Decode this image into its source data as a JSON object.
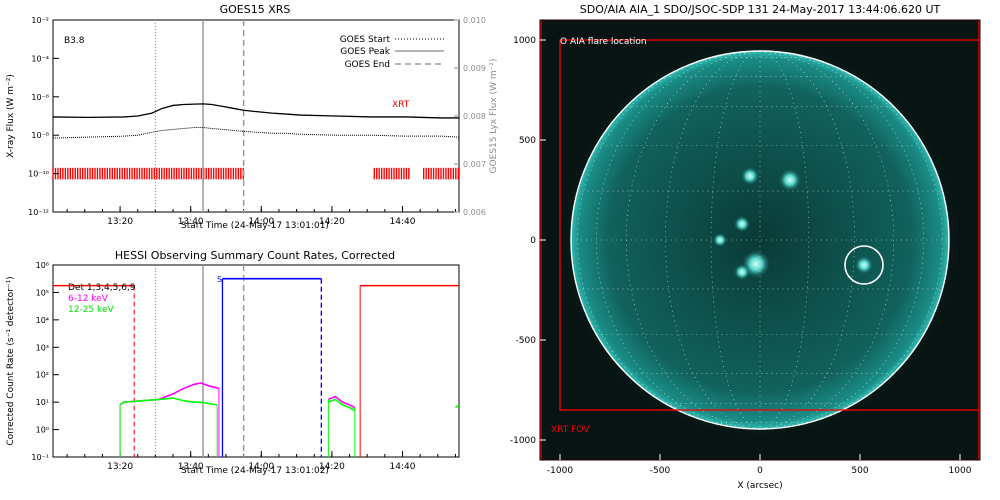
{
  "colors": {
    "background": "#ffffff",
    "axis": "#000000",
    "goes_long": "#000000",
    "goes_short": "#000000",
    "xrt": "#ff0000",
    "ch_6_12": "#ff00ff",
    "ch_12_25": "#00ff00",
    "saa": "#0000ff",
    "right_axis": "#8c8c8c",
    "sun_bg": "#071413",
    "sun_disk": "#0f5552",
    "limb": "#ffffff",
    "grid": "#ffffff",
    "fov": "#ff0000"
  },
  "chart_data": [
    {
      "type": "line",
      "title": "GOES15 XRS",
      "xlabel": "Start Time (24-May-17 13:01:01)",
      "ylabel": "X-ray Flux (W m⁻²)",
      "ylabel_right": "GOES15 Lyx Flux (W m⁻²)",
      "x_ticks": [
        "13:20",
        "13:40",
        "14:00",
        "14:20",
        "14:40"
      ],
      "y_ticks": [
        "10⁻²",
        "10⁻⁴",
        "10⁻⁶",
        "10⁻⁸",
        "10⁻¹⁰",
        "10⁻¹²"
      ],
      "y_ticks_right": [
        "0.010",
        "0.009",
        "0.008",
        "0.007",
        "0.006"
      ],
      "xlim_min": [
        0,
        115
      ],
      "ylim_log10": [
        -12,
        -2
      ],
      "yscale": "log",
      "annotation": "B3.8",
      "xrt_label": "XRT",
      "legend": [
        "GOES Start",
        "GOES Peak",
        "GOES End"
      ],
      "legend_position": "top-right",
      "markers_min": {
        "start": 29,
        "peak": 42.5,
        "end": 54
      },
      "series": [
        {
          "x_min": [
            0,
            10,
            20,
            24,
            28,
            31,
            34,
            37,
            40,
            42.5,
            45,
            48,
            51,
            54,
            58,
            62,
            66,
            70,
            80,
            90,
            100,
            110,
            115
          ],
          "log10_flux": [
            -7.05,
            -7.07,
            -7.05,
            -7.0,
            -6.85,
            -6.6,
            -6.45,
            -6.4,
            -6.38,
            -6.37,
            -6.4,
            -6.5,
            -6.6,
            -6.7,
            -6.78,
            -6.85,
            -6.9,
            -6.95,
            -7.0,
            -7.05,
            -7.05,
            -7.1,
            -7.1
          ]
        },
        {
          "x_min": [
            0,
            10,
            20,
            24,
            28,
            31,
            34,
            37,
            40,
            42.5,
            45,
            48,
            51,
            54,
            58,
            62,
            66,
            70,
            80,
            90,
            100,
            110,
            115
          ],
          "log10_flux": [
            -8.15,
            -8.1,
            -8.05,
            -8.0,
            -7.85,
            -7.75,
            -7.7,
            -7.65,
            -7.6,
            -7.6,
            -7.65,
            -7.7,
            -7.75,
            -7.8,
            -7.85,
            -7.9,
            -7.9,
            -7.95,
            -8.0,
            -8.0,
            -8.05,
            -8.05,
            -8.1
          ]
        }
      ],
      "xrt_intervals_min": [
        [
          0,
          54
        ],
        [
          91,
          101
        ],
        [
          105,
          115
        ]
      ]
    },
    {
      "type": "line",
      "title": "HESSI Observing Summary Count Rates, Corrected",
      "xlabel": "Start Time (24-May-17 13:01:02)",
      "ylabel": "Corrected Count Rate (s⁻¹ detector⁻¹)",
      "x_ticks": [
        "13:20",
        "13:40",
        "14:00",
        "14:20",
        "14:40"
      ],
      "y_ticks": [
        "10⁶",
        "10⁵",
        "10⁴",
        "10³",
        "10²",
        "10¹",
        "10⁰",
        "10⁻¹"
      ],
      "xlim_min": [
        0,
        115
      ],
      "ylim_log10": [
        -1,
        6
      ],
      "yscale": "log",
      "legend": [
        "Det 1,3,4,5,6,9",
        "6-12 keV",
        "12-25 keV"
      ],
      "legend_position": "top-left",
      "saa_label": "S",
      "markers_min": {
        "start": 29,
        "peak": 42.5,
        "end": 54
      },
      "series": [
        {
          "name": "6-12 keV",
          "x_min": [
            19,
            20,
            25,
            30,
            34,
            37,
            40,
            42,
            44,
            47
          ],
          "log10_rate": [
            0.9,
            1.0,
            1.05,
            1.1,
            1.3,
            1.5,
            1.65,
            1.7,
            1.6,
            1.5
          ]
        },
        {
          "name": "12-25 keV",
          "x_min": [
            19,
            20,
            25,
            30,
            34,
            37,
            40,
            42,
            44,
            46.5
          ],
          "log10_rate": [
            0.9,
            1.0,
            1.05,
            1.1,
            1.15,
            1.05,
            1.0,
            1.0,
            0.95,
            0.9
          ]
        }
      ],
      "late_series_min": {
        "x": [
          78,
          80,
          82,
          84,
          85.5
        ],
        "log10": [
          1.1,
          1.2,
          1.0,
          0.9,
          0.8
        ]
      },
      "saa_interval_min": [
        48,
        76
      ],
      "saa_level_log10": 5.5,
      "night_intervals_min": [
        [
          0,
          23
        ],
        [
          87,
          115
        ]
      ],
      "night_level_log10": 5.25
    },
    {
      "type": "heatmap",
      "title": "SDO/AIA AIA_1 SDO/JSOC-SDP 131 24-May-2017 13:44:06.620 UT",
      "xlabel": "X (arcsec)",
      "ylabel": "",
      "x_ticks": [
        -1000,
        -500,
        0,
        500,
        1000
      ],
      "y_ticks": [
        1000,
        500,
        0,
        -500,
        -1000
      ],
      "xlim": [
        -1100,
        1100
      ],
      "ylim": [
        -1100,
        1100
      ],
      "solar_radius_arcsec": 945,
      "legend": [
        "O AIA flare location"
      ],
      "flare_location": [
        520,
        -125
      ],
      "flare_circle_radius_arcsec": 95,
      "xrt_fov_label": "XRT FOV",
      "xrt_fov": {
        "x": [
          -1000,
          1100
        ],
        "y": [
          -850,
          1000
        ]
      },
      "outer_box": {
        "x": [
          -1100,
          1100
        ],
        "y": [
          -1100,
          1100
        ]
      }
    }
  ]
}
